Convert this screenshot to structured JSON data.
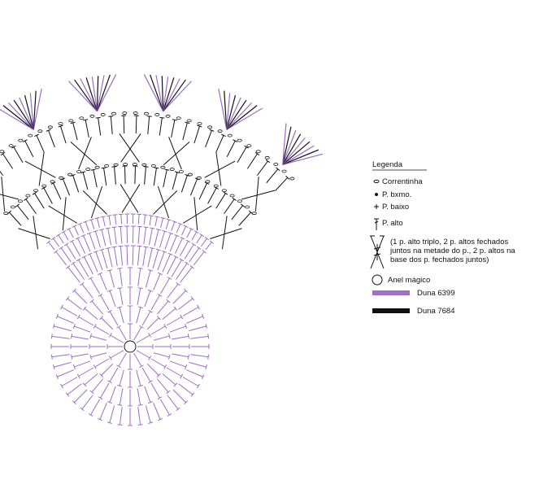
{
  "legend": {
    "title": "Legenda",
    "items": [
      {
        "label": "Correntinha"
      },
      {
        "label": "P. bxmo."
      },
      {
        "label": "P. baixo"
      },
      {
        "label": "P. alto"
      },
      {
        "label": "(1 p. alto triplo, 2 p. altos fechados juntos na metade do p., 2 p. altos na base dos p. fechados juntos)"
      },
      {
        "label": "Anel mágico"
      },
      {
        "label": "Duna 6399"
      },
      {
        "label": "Duna 7684"
      }
    ]
  }
}
